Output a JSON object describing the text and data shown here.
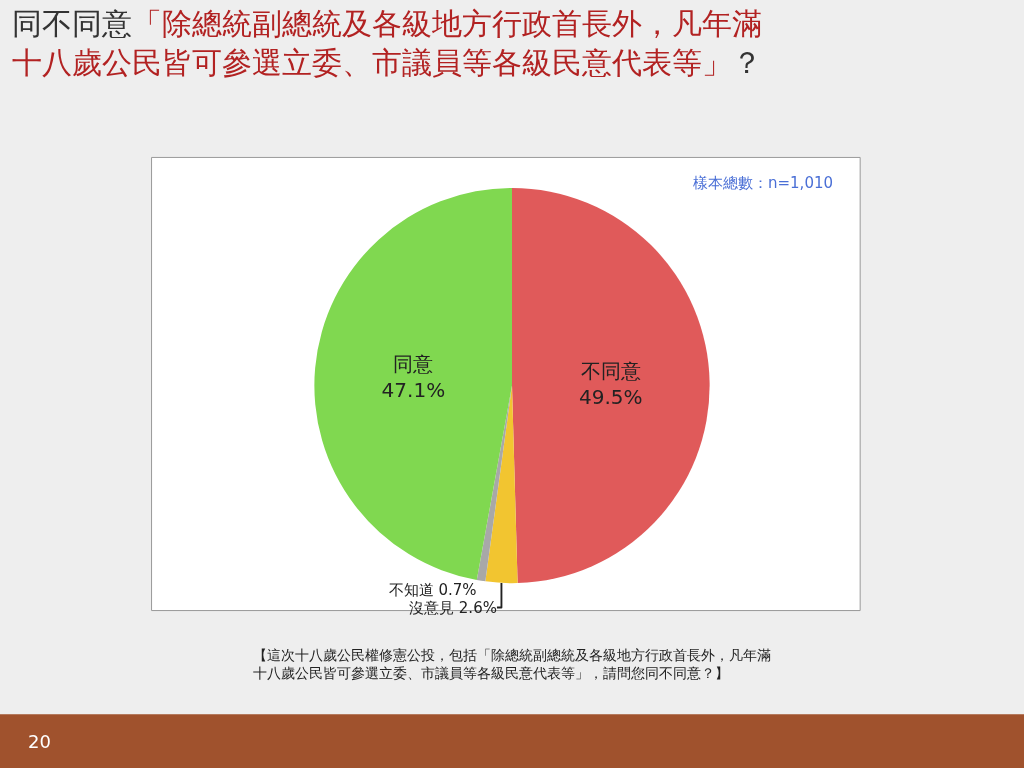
{
  "chart_data": {
    "type": "pie",
    "title": "同不同意「除總統副總統及各級地方行政首長外，凡年滿十八歲公民皆可參選立委、市議員等各級民意代表等」？",
    "categories": [
      "不同意",
      "沒意見",
      "不知道",
      "同意"
    ],
    "values": [
      49.5,
      2.6,
      0.7,
      47.1
    ],
    "value_labels": [
      "49.5%",
      "2.6%",
      "0.7%",
      "47.1%"
    ],
    "colors": [
      "#e05a5a",
      "#f2c530",
      "#a8a8a8",
      "#80d850"
    ],
    "legend": false,
    "annotations": [
      "樣本總數：n=1,010",
      "【這次十八歲公民權修憲公投，包括「除總統副總統及各級地方行政首長外，凡年滿十八歲公民皆可參選立委、市議員等各級民意代表等」，請問您同不同意？】",
      "20"
    ]
  }
}
